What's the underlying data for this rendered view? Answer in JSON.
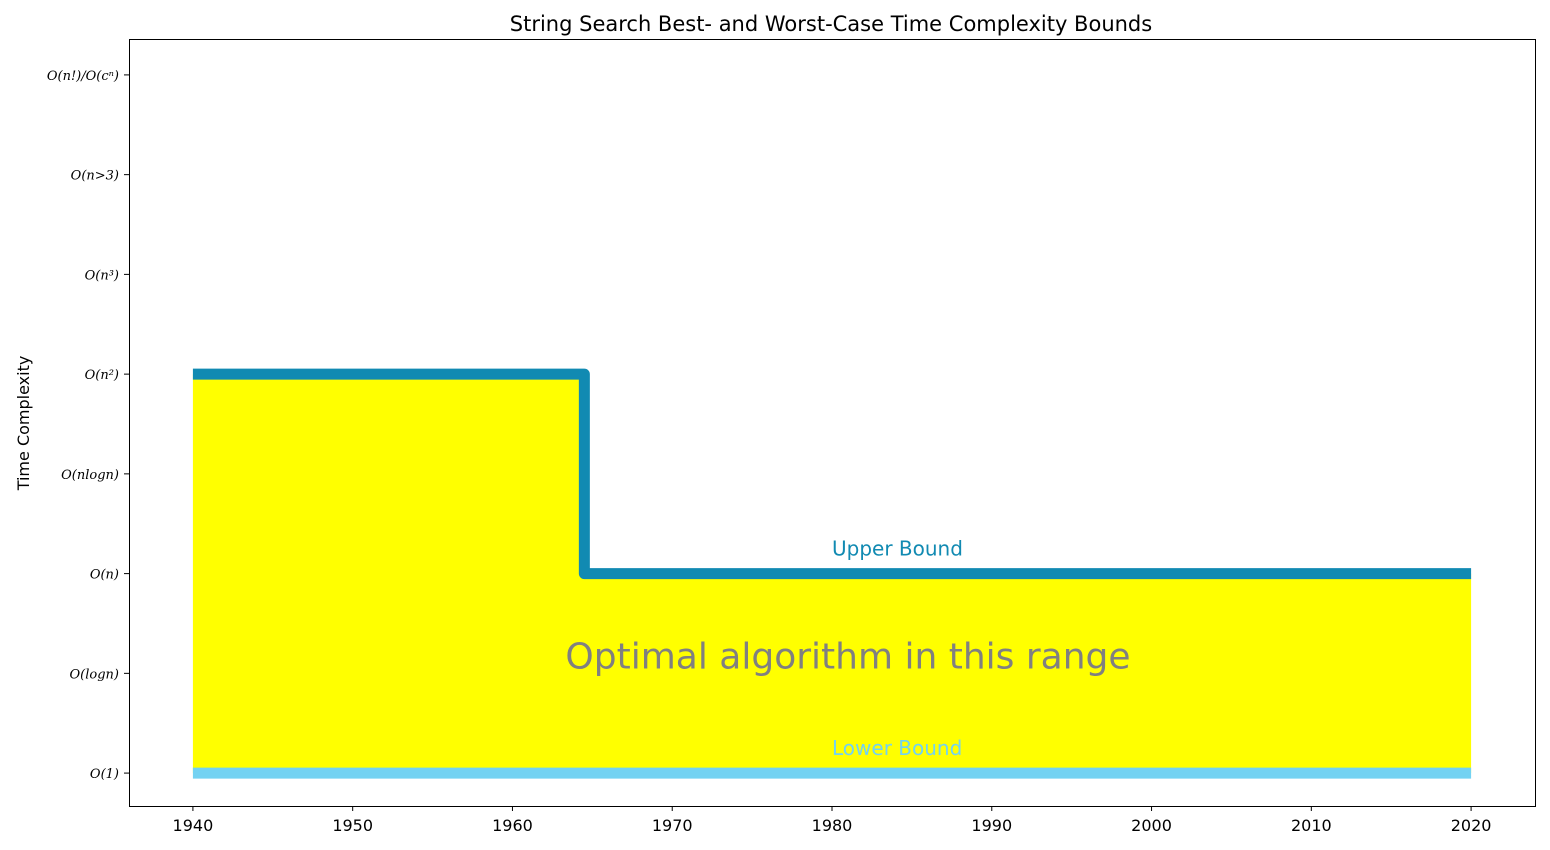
{
  "chart_data": {
    "type": "line",
    "title": "String Search Best- and Worst-Case Time Complexity Bounds",
    "xlabel": "",
    "ylabel": "Time Complexity",
    "xlim": [
      1936,
      2024
    ],
    "ylim": [
      -0.33,
      7.36
    ],
    "xticks": [
      1940,
      1950,
      1960,
      1970,
      1980,
      1990,
      2000,
      2010,
      2020
    ],
    "yticks": [
      {
        "value": 0,
        "label": "O(1)"
      },
      {
        "value": 1,
        "label": "O(logn)"
      },
      {
        "value": 2,
        "label": "O(n)"
      },
      {
        "value": 3,
        "label": "O(nlogn)"
      },
      {
        "value": 4,
        "label": "O(n²)"
      },
      {
        "value": 5,
        "label": "O(n³)"
      },
      {
        "value": 6,
        "label": "O(n>3)"
      },
      {
        "value": 7,
        "label": "O(n!)/O(cⁿ)"
      }
    ],
    "grid": false,
    "series": [
      {
        "name": "Upper Bound",
        "color": "#118ab2",
        "step": true,
        "points": [
          [
            1940,
            4
          ],
          [
            1964.5,
            4
          ],
          [
            1964.5,
            2
          ],
          [
            2020,
            2
          ]
        ],
        "label_at": [
          1980,
          2.18
        ]
      },
      {
        "name": "Lower Bound",
        "color": "#73d2f2",
        "step": true,
        "points": [
          [
            1940,
            0
          ],
          [
            2020,
            0
          ]
        ],
        "label_at": [
          1980,
          0.18
        ]
      }
    ],
    "fill": {
      "color": "#ffff00",
      "label": "Optimal algorithm in this range",
      "label_at": [
        1981,
        1.05
      ]
    }
  }
}
